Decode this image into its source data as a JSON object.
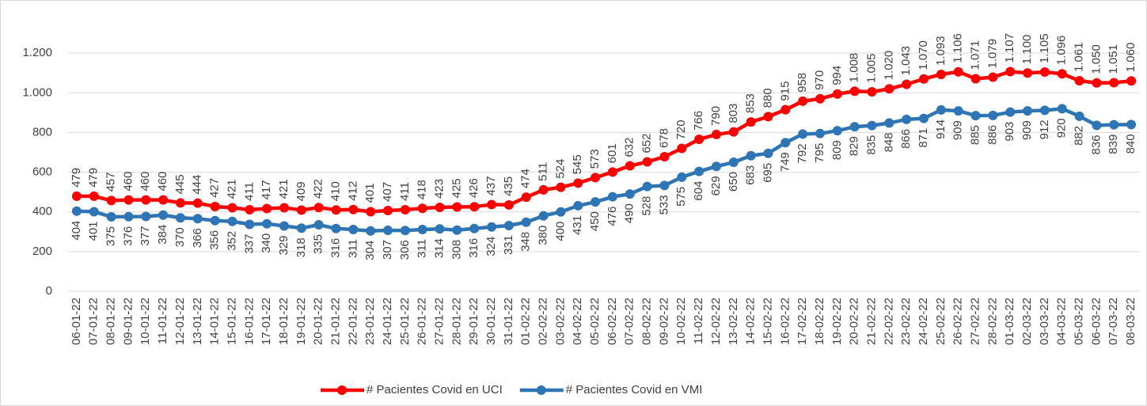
{
  "chart_data": {
    "type": "line",
    "categories": [
      "06-01-22",
      "07-01-22",
      "08-01-22",
      "09-01-22",
      "10-01-22",
      "11-01-22",
      "12-01-22",
      "13-01-22",
      "14-01-22",
      "15-01-22",
      "16-01-22",
      "17-01-22",
      "18-01-22",
      "19-01-22",
      "20-01-22",
      "21-01-22",
      "22-01-22",
      "23-01-22",
      "24-01-22",
      "25-01-22",
      "26-01-22",
      "27-01-22",
      "28-01-22",
      "29-01-22",
      "30-01-22",
      "31-01-22",
      "01-02-22",
      "02-02-22",
      "03-02-22",
      "04-02-22",
      "05-02-22",
      "06-02-22",
      "07-02-22",
      "08-02-22",
      "09-02-22",
      "10-02-22",
      "11-02-22",
      "12-02-22",
      "13-02-22",
      "14-02-22",
      "15-02-22",
      "16-02-22",
      "17-02-22",
      "18-02-22",
      "19-02-22",
      "20-02-22",
      "21-02-22",
      "22-02-22",
      "23-02-22",
      "24-02-22",
      "25-02-22",
      "26-02-22",
      "27-02-22",
      "28-02-22",
      "01-03-22",
      "02-03-22",
      "03-03-22",
      "04-03-22",
      "05-03-22",
      "06-03-22",
      "07-03-22",
      "08-03-22"
    ],
    "series": [
      {
        "name": "# Pacientes Covid en UCI",
        "color": "#ff0000",
        "label_side": "above",
        "values": [
          479,
          479,
          457,
          460,
          460,
          460,
          445,
          444,
          427,
          421,
          411,
          417,
          421,
          409,
          422,
          410,
          412,
          401,
          407,
          411,
          418,
          423,
          425,
          426,
          437,
          435,
          474,
          511,
          524,
          545,
          573,
          601,
          632,
          652,
          678,
          720,
          766,
          790,
          803,
          853,
          880,
          915,
          958,
          970,
          994,
          1008,
          1005,
          1020,
          1043,
          1070,
          1093,
          1106,
          1071,
          1079,
          1107,
          1100,
          1105,
          1096,
          1061,
          1050,
          1051,
          1060
        ],
        "value_labels": [
          "479",
          "479",
          "457",
          "460",
          "460",
          "460",
          "445",
          "444",
          "427",
          "421",
          "411",
          "417",
          "421",
          "409",
          "422",
          "410",
          "412",
          "401",
          "407",
          "411",
          "418",
          "423",
          "425",
          "426",
          "437",
          "435",
          "474",
          "511",
          "524",
          "545",
          "573",
          "601",
          "632",
          "652",
          "678",
          "720",
          "766",
          "790",
          "803",
          "853",
          "880",
          "915",
          "958",
          "970",
          "994",
          "1.008",
          "1.005",
          "1.020",
          "1.043",
          "1.070",
          "1.093",
          "1.106",
          "1.071",
          "1.079",
          "1.107",
          "1.100",
          "1.105",
          "1.096",
          "1.061",
          "1.050",
          "1.051",
          "1.060"
        ]
      },
      {
        "name": "# Pacientes Covid en VMI",
        "color": "#2e75b6",
        "label_side": "below",
        "values": [
          404,
          401,
          375,
          376,
          377,
          384,
          370,
          366,
          356,
          352,
          337,
          340,
          329,
          318,
          335,
          316,
          311,
          304,
          307,
          306,
          311,
          314,
          308,
          316,
          324,
          331,
          348,
          380,
          400,
          431,
          450,
          476,
          490,
          528,
          533,
          575,
          604,
          629,
          650,
          683,
          695,
          749,
          792,
          795,
          809,
          829,
          835,
          848,
          866,
          871,
          914,
          909,
          885,
          886,
          903,
          909,
          912,
          920,
          882,
          836,
          839,
          840
        ]
      }
    ],
    "ylim": [
      0,
      1400
    ],
    "yticks": [
      0,
      200,
      400,
      600,
      800,
      {
        "value": 1000,
        "label": "1.000"
      },
      {
        "value": 1200,
        "label": "1.200"
      }
    ],
    "grid": true,
    "legend": "bottom"
  }
}
